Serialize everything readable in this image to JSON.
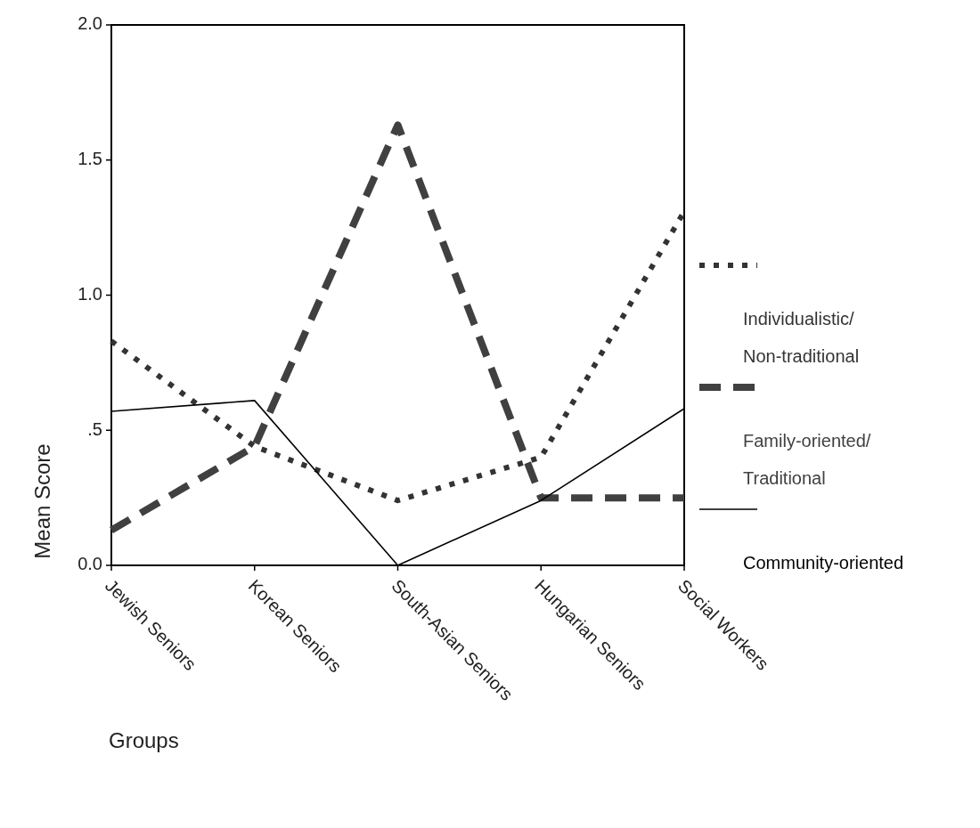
{
  "chart_data": {
    "type": "line",
    "xlabel": "Groups",
    "ylabel": "Mean Score",
    "categories": [
      "Jewish Seniors",
      "Korean Seniors",
      "South-Asian Seniors",
      "Hungarian Seniors",
      "Social Workers"
    ],
    "series": [
      {
        "name": "Individualistic/ Non-traditional",
        "color": "#333333",
        "line_style": "dotted",
        "values": [
          0.83,
          0.44,
          0.24,
          0.4,
          1.31
        ]
      },
      {
        "name": "Family-oriented/ Traditional",
        "color": "#404040",
        "line_style": "dashed",
        "values": [
          0.13,
          0.44,
          1.63,
          0.25,
          0.25
        ]
      },
      {
        "name": "Community-oriented",
        "color": "#000000",
        "line_style": "solid",
        "values": [
          0.57,
          0.61,
          0.0,
          0.24,
          0.58
        ]
      }
    ],
    "ylim": [
      0,
      2
    ],
    "yticks": [
      {
        "value": 0,
        "label": "0.0"
      },
      {
        "value": 0.5,
        "label": ".5"
      },
      {
        "value": 1,
        "label": "1.0"
      },
      {
        "value": 1.5,
        "label": "1.5"
      },
      {
        "value": 2,
        "label": "2.0"
      }
    ],
    "grid": false,
    "legend": "right"
  }
}
